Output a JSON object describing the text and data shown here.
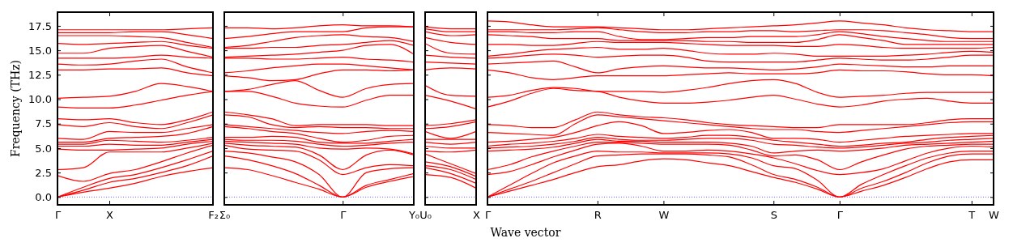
{
  "chart_data": [
    {
      "type": "line",
      "ylabel": "Frequency (THz)",
      "categories": [
        "Γ",
        null,
        "X",
        null,
        null,
        null,
        "F₂"
      ],
      "ylim": [
        -0.8,
        18.9
      ],
      "yticks": [
        {
          "value": 0,
          "label": "0.0"
        },
        {
          "value": 2.5,
          "label": "2.5"
        },
        {
          "value": 5,
          "label": "5.0"
        },
        {
          "value": 7.5,
          "label": "7.5"
        },
        {
          "value": 10,
          "label": "10.0"
        },
        {
          "value": 12.5,
          "label": "12.5"
        },
        {
          "value": 15,
          "label": "15.0"
        },
        {
          "value": 17.5,
          "label": "17.5"
        }
      ],
      "ref_lines": [
        {
          "axis": "y",
          "value": 0,
          "color": "#0000ff",
          "line_style": "dotted"
        }
      ],
      "series": [
        {
          "color": "#ff0000",
          "values": [
            0,
            0.5,
            0.9,
            1.4,
            2.1,
            2.6,
            3.0
          ]
        },
        {
          "color": "#ff0000",
          "values": [
            0,
            0.7,
            1.5,
            1.9,
            2.5,
            3.2,
            4.2
          ]
        },
        {
          "color": "#ff0000",
          "values": [
            0,
            1.0,
            1.9,
            2.3,
            3.0,
            3.8,
            4.7
          ]
        },
        {
          "color": "#ff0000",
          "values": [
            2.2,
            1.6,
            2.4,
            2.8,
            3.6,
            4.5,
            5.3
          ]
        },
        {
          "color": "#ff0000",
          "values": [
            2.8,
            3.0,
            4.6,
            4.6,
            4.6,
            5.0,
            5.5
          ]
        },
        {
          "color": "#ff0000",
          "values": [
            4.9,
            4.8,
            4.8,
            4.9,
            5.0,
            5.4,
            5.7
          ]
        },
        {
          "color": "#ff0000",
          "values": [
            5.2,
            5.2,
            5.4,
            5.3,
            5.3,
            5.6,
            5.9
          ]
        },
        {
          "color": "#ff0000",
          "values": [
            5.4,
            5.4,
            5.8,
            5.7,
            5.6,
            5.8,
            6.1
          ]
        },
        {
          "color": "#ff0000",
          "values": [
            5.6,
            5.6,
            6.0,
            6.1,
            6.2,
            6.5,
            7.2
          ]
        },
        {
          "color": "#ff0000",
          "values": [
            6.0,
            5.9,
            6.7,
            6.6,
            6.6,
            7.0,
            7.4
          ]
        },
        {
          "color": "#ff0000",
          "values": [
            7.4,
            7.2,
            7.6,
            7.2,
            7.0,
            7.6,
            8.4
          ]
        },
        {
          "color": "#ff0000",
          "values": [
            8.0,
            7.9,
            8.0,
            7.6,
            7.4,
            7.9,
            8.7
          ]
        },
        {
          "color": "#ff0000",
          "values": [
            9.2,
            9.1,
            9.1,
            9.4,
            9.9,
            10.4,
            10.8
          ]
        },
        {
          "color": "#ff0000",
          "values": [
            10.1,
            10.2,
            10.3,
            10.8,
            11.6,
            11.3,
            10.8
          ]
        },
        {
          "color": "#ff0000",
          "values": [
            13.0,
            13.0,
            13.1,
            13.1,
            13.2,
            12.7,
            12.4
          ]
        },
        {
          "color": "#ff0000",
          "values": [
            13.6,
            13.5,
            13.6,
            13.9,
            14.1,
            13.3,
            12.7
          ]
        },
        {
          "color": "#ff0000",
          "values": [
            14.2,
            14.2,
            14.2,
            14.3,
            14.5,
            14.3,
            14.2
          ]
        },
        {
          "color": "#ff0000",
          "values": [
            14.7,
            14.7,
            15.2,
            15.4,
            15.5,
            14.9,
            14.3
          ]
        },
        {
          "color": "#ff0000",
          "values": [
            15.7,
            15.6,
            15.7,
            15.8,
            15.9,
            15.5,
            15.2
          ]
        },
        {
          "color": "#ff0000",
          "values": [
            16.5,
            16.5,
            16.5,
            16.4,
            16.3,
            15.8,
            15.3
          ]
        },
        {
          "color": "#ff0000",
          "values": [
            16.8,
            16.8,
            16.8,
            16.9,
            16.9,
            16.6,
            16.2
          ]
        },
        {
          "color": "#ff0000",
          "values": [
            17.1,
            17.1,
            17.1,
            17.1,
            17.1,
            17.2,
            17.3
          ]
        }
      ]
    },
    {
      "type": "line",
      "tick_labels": "x",
      "categories": [
        "Σ₀",
        null,
        null,
        null,
        null,
        "Γ",
        null,
        null,
        "Y₀"
      ],
      "ylim": [
        -0.8,
        18.9
      ],
      "yticks": [
        {
          "value": 0,
          "label": null
        },
        {
          "value": 2.5,
          "label": null
        },
        {
          "value": 5,
          "label": null
        },
        {
          "value": 7.5,
          "label": null
        },
        {
          "value": 10,
          "label": null
        },
        {
          "value": 12.5,
          "label": null
        },
        {
          "value": 15,
          "label": null
        },
        {
          "value": 17.5,
          "label": null
        }
      ],
      "ref_lines": [
        {
          "axis": "y",
          "value": 0,
          "color": "#0000ff",
          "line_style": "dotted"
        }
      ],
      "series": [
        {
          "color": "#ff0000",
          "values": [
            3.0,
            2.8,
            2.2,
            1.5,
            0.8,
            0,
            1.0,
            1.6,
            2.1
          ]
        },
        {
          "color": "#ff0000",
          "values": [
            4.2,
            3.8,
            3.2,
            2.4,
            1.2,
            0,
            1.2,
            1.8,
            2.4
          ]
        },
        {
          "color": "#ff0000",
          "values": [
            4.7,
            4.5,
            4.1,
            3.6,
            2.3,
            0,
            2.5,
            2.9,
            3.0
          ]
        },
        {
          "color": "#ff0000",
          "values": [
            5.3,
            4.9,
            4.8,
            4.7,
            3.8,
            2.3,
            3.0,
            3.3,
            3.2
          ]
        },
        {
          "color": "#ff0000",
          "values": [
            5.5,
            5.3,
            5.2,
            5.1,
            4.3,
            2.8,
            4.3,
            4.8,
            4.3
          ]
        },
        {
          "color": "#ff0000",
          "values": [
            5.7,
            5.6,
            5.5,
            5.4,
            5.0,
            4.9,
            5.0,
            4.9,
            4.4
          ]
        },
        {
          "color": "#ff0000",
          "values": [
            5.9,
            5.8,
            5.8,
            5.7,
            5.4,
            5.2,
            5.3,
            5.5,
            5.6
          ]
        },
        {
          "color": "#ff0000",
          "values": [
            6.1,
            6.1,
            6.2,
            6.1,
            5.6,
            5.5,
            5.5,
            5.7,
            5.9
          ]
        },
        {
          "color": "#ff0000",
          "values": [
            7.2,
            7.0,
            6.7,
            6.5,
            6.0,
            5.6,
            5.8,
            6.2,
            6.3
          ]
        },
        {
          "color": "#ff0000",
          "values": [
            7.4,
            7.2,
            7.0,
            6.8,
            6.6,
            6.5,
            6.7,
            6.8,
            6.7
          ]
        },
        {
          "color": "#ff0000",
          "values": [
            8.4,
            8.2,
            7.4,
            7.1,
            7.2,
            7.1,
            7.1,
            7.0,
            7.0
          ]
        },
        {
          "color": "#ff0000",
          "values": [
            8.7,
            8.4,
            8.0,
            7.3,
            7.4,
            7.4,
            7.4,
            7.3,
            7.3
          ]
        },
        {
          "color": "#ff0000",
          "values": [
            10.8,
            10.8,
            10.3,
            9.6,
            9.3,
            9.2,
            9.9,
            10.4,
            10.4
          ]
        },
        {
          "color": "#ff0000",
          "values": [
            10.8,
            11.0,
            11.5,
            11.9,
            10.9,
            10.2,
            11.1,
            11.5,
            11.6
          ]
        },
        {
          "color": "#ff0000",
          "values": [
            12.4,
            12.2,
            11.9,
            12.0,
            12.6,
            13.0,
            13.0,
            12.9,
            13.0
          ]
        },
        {
          "color": "#ff0000",
          "values": [
            12.7,
            12.9,
            13.2,
            13.4,
            13.6,
            13.6,
            13.4,
            13.2,
            13.0
          ]
        },
        {
          "color": "#ff0000",
          "values": [
            14.2,
            14.2,
            14.1,
            14.1,
            14.2,
            14.3,
            14.1,
            14.0,
            13.8
          ]
        },
        {
          "color": "#ff0000",
          "values": [
            14.3,
            14.4,
            14.5,
            14.6,
            14.8,
            15.0,
            15.5,
            15.6,
            14.6
          ]
        },
        {
          "color": "#ff0000",
          "values": [
            15.2,
            15.2,
            15.3,
            15.3,
            15.5,
            15.6,
            15.8,
            16.0,
            15.5
          ]
        },
        {
          "color": "#ff0000",
          "values": [
            15.3,
            15.5,
            15.9,
            16.3,
            16.5,
            16.6,
            16.4,
            16.3,
            15.9
          ]
        },
        {
          "color": "#ff0000",
          "values": [
            16.2,
            16.4,
            16.7,
            16.9,
            16.9,
            16.9,
            17.3,
            17.4,
            17.4
          ]
        },
        {
          "color": "#ff0000",
          "values": [
            17.3,
            17.3,
            17.2,
            17.3,
            17.5,
            17.6,
            17.5,
            17.5,
            17.4
          ]
        }
      ]
    },
    {
      "type": "line",
      "tick_labels": "x",
      "categories": [
        "U₀",
        null,
        "X"
      ],
      "ylim": [
        -0.8,
        18.9
      ],
      "yticks": [
        {
          "value": 0,
          "label": null
        },
        {
          "value": 2.5,
          "label": null
        },
        {
          "value": 5,
          "label": null
        },
        {
          "value": 7.5,
          "label": null
        },
        {
          "value": 10,
          "label": null
        },
        {
          "value": 12.5,
          "label": null
        },
        {
          "value": 15,
          "label": null
        },
        {
          "value": 17.5,
          "label": null
        }
      ],
      "ref_lines": [
        {
          "axis": "y",
          "value": 0,
          "color": "#0000ff",
          "line_style": "dotted"
        }
      ],
      "series": [
        {
          "color": "#ff0000",
          "values": [
            2.3,
            2.0,
            0.9
          ]
        },
        {
          "color": "#ff0000",
          "values": [
            3.0,
            2.4,
            1.4
          ]
        },
        {
          "color": "#ff0000",
          "values": [
            3.2,
            2.8,
            1.8
          ]
        },
        {
          "color": "#ff0000",
          "values": [
            3.6,
            3.1,
            2.1
          ]
        },
        {
          "color": "#ff0000",
          "values": [
            4.4,
            3.4,
            2.4
          ]
        },
        {
          "color": "#ff0000",
          "values": [
            4.7,
            4.6,
            4.8
          ]
        },
        {
          "color": "#ff0000",
          "values": [
            5.2,
            5.0,
            5.0
          ]
        },
        {
          "color": "#ff0000",
          "values": [
            5.6,
            5.4,
            5.6
          ]
        },
        {
          "color": "#ff0000",
          "values": [
            5.9,
            5.9,
            5.9
          ]
        },
        {
          "color": "#ff0000",
          "values": [
            6.7,
            6.0,
            6.7
          ]
        },
        {
          "color": "#ff0000",
          "values": [
            7.0,
            7.2,
            7.7
          ]
        },
        {
          "color": "#ff0000",
          "values": [
            7.3,
            7.5,
            7.9
          ]
        },
        {
          "color": "#ff0000",
          "values": [
            10.4,
            9.8,
            9.0
          ]
        },
        {
          "color": "#ff0000",
          "values": [
            11.4,
            10.4,
            10.3
          ]
        },
        {
          "color": "#ff0000",
          "values": [
            13.0,
            13.2,
            13.1
          ]
        },
        {
          "color": "#ff0000",
          "values": [
            13.8,
            13.7,
            13.6
          ]
        },
        {
          "color": "#ff0000",
          "values": [
            14.5,
            14.3,
            14.2
          ]
        },
        {
          "color": "#ff0000",
          "values": [
            15.7,
            14.7,
            14.6
          ]
        },
        {
          "color": "#ff0000",
          "values": [
            16.3,
            15.8,
            15.6
          ]
        },
        {
          "color": "#ff0000",
          "values": [
            16.9,
            16.5,
            16.6
          ]
        },
        {
          "color": "#ff0000",
          "values": [
            17.2,
            16.9,
            16.9
          ]
        },
        {
          "color": "#ff0000",
          "values": [
            17.4,
            17.2,
            17.2
          ]
        }
      ]
    },
    {
      "type": "line",
      "tick_labels": "x",
      "xlabel": "Wave vector",
      "categories": [
        "Γ",
        null,
        null,
        null,
        null,
        "R",
        null,
        null,
        "W",
        null,
        null,
        null,
        null,
        "S",
        null,
        null,
        "Γ",
        null,
        null,
        null,
        null,
        null,
        "T",
        "W"
      ],
      "ylim": [
        -0.8,
        18.9
      ],
      "yticks": [
        {
          "value": 0,
          "label": null
        },
        {
          "value": 2.5,
          "label": null
        },
        {
          "value": 5,
          "label": null
        },
        {
          "value": 7.5,
          "label": null
        },
        {
          "value": 10,
          "label": null
        },
        {
          "value": 12.5,
          "label": null
        },
        {
          "value": 15,
          "label": null
        },
        {
          "value": 17.5,
          "label": null
        }
      ],
      "ref_lines": [
        {
          "axis": "y",
          "value": 0,
          "color": "#0000ff",
          "line_style": "dotted"
        }
      ],
      "series": [
        {
          "color": "#ff0000",
          "values": [
            0,
            0.6,
            1.2,
            1.8,
            2.5,
            3.1,
            3.3,
            3.7,
            3.9,
            3.8,
            3.5,
            3.2,
            2.6,
            2.0,
            1.5,
            0.8,
            0,
            0.6,
            1.2,
            2.0,
            2.9,
            3.6,
            3.8,
            3.8
          ]
        },
        {
          "color": "#ff0000",
          "values": [
            0,
            0.8,
            1.6,
            2.5,
            3.4,
            4.2,
            4.3,
            4.4,
            4.4,
            4.4,
            4.3,
            4.1,
            3.3,
            2.3,
            1.8,
            1.0,
            0,
            0.9,
            1.6,
            2.5,
            3.5,
            4.2,
            4.4,
            4.4
          ]
        },
        {
          "color": "#ff0000",
          "values": [
            0,
            1.2,
            2.4,
            3.5,
            4.2,
            4.7,
            4.6,
            4.6,
            4.5,
            4.5,
            4.5,
            4.4,
            4.0,
            3.2,
            2.9,
            1.7,
            0,
            1.3,
            2.3,
            3.2,
            4.0,
            4.5,
            4.7,
            4.7
          ]
        },
        {
          "color": "#ff0000",
          "values": [
            2.3,
            2.6,
            3.3,
            4.1,
            4.8,
            5.4,
            5.5,
            5.2,
            4.7,
            4.7,
            4.8,
            4.7,
            4.4,
            4.0,
            3.4,
            2.7,
            2.3,
            2.5,
            2.9,
            3.7,
            4.5,
            5.0,
            5.2,
            5.1
          ]
        },
        {
          "color": "#ff0000",
          "values": [
            2.8,
            3.3,
            4.1,
            4.7,
            5.2,
            5.6,
            5.6,
            5.5,
            5.4,
            5.4,
            5.4,
            5.3,
            4.8,
            4.2,
            4.3,
            3.8,
            2.8,
            3.6,
            4.3,
            4.9,
            5.2,
            5.3,
            5.4,
            5.4
          ]
        },
        {
          "color": "#ff0000",
          "values": [
            4.7,
            4.8,
            4.9,
            5.1,
            5.5,
            5.9,
            5.7,
            5.7,
            5.6,
            5.6,
            5.6,
            5.5,
            5.2,
            4.5,
            4.7,
            4.8,
            4.7,
            4.8,
            5.0,
            5.3,
            5.4,
            5.5,
            5.6,
            5.7
          ]
        },
        {
          "color": "#ff0000",
          "values": [
            5.0,
            5.1,
            5.2,
            5.4,
            5.7,
            6.1,
            5.9,
            5.8,
            5.8,
            5.9,
            6.0,
            6.0,
            5.8,
            5.4,
            5.3,
            5.1,
            5.0,
            5.1,
            5.3,
            5.5,
            5.6,
            5.8,
            5.9,
            6.0
          ]
        },
        {
          "color": "#ff0000",
          "values": [
            5.2,
            5.4,
            5.5,
            5.7,
            6.0,
            6.4,
            6.2,
            6.1,
            6.0,
            6.1,
            6.3,
            6.3,
            6.1,
            5.8,
            5.6,
            5.4,
            5.2,
            5.3,
            5.5,
            5.6,
            5.9,
            6.1,
            6.2,
            6.3
          ]
        },
        {
          "color": "#ff0000",
          "values": [
            5.6,
            5.7,
            5.9,
            6.1,
            6.6,
            7.3,
            7.7,
            7.3,
            6.5,
            6.6,
            6.8,
            6.9,
            6.6,
            6.0,
            6.0,
            5.9,
            5.6,
            5.8,
            6.0,
            6.2,
            6.3,
            6.4,
            6.5,
            6.5
          ]
        },
        {
          "color": "#ff0000",
          "values": [
            6.6,
            6.5,
            6.4,
            6.3,
            7.5,
            8.4,
            8.2,
            8.0,
            7.8,
            7.6,
            7.4,
            7.2,
            7.0,
            6.9,
            6.9,
            6.7,
            6.6,
            6.8,
            7.0,
            7.2,
            7.4,
            7.6,
            7.7,
            7.7
          ]
        },
        {
          "color": "#ff0000",
          "values": [
            7.4,
            7.3,
            7.1,
            7.1,
            7.9,
            8.7,
            8.4,
            8.2,
            8.1,
            7.9,
            7.6,
            7.4,
            7.3,
            7.2,
            7.1,
            7.1,
            7.4,
            7.4,
            7.4,
            7.4,
            7.6,
            7.9,
            8.0,
            8.0
          ]
        },
        {
          "color": "#ff0000",
          "values": [
            9.2,
            9.8,
            10.6,
            11.1,
            10.9,
            10.8,
            10.2,
            9.8,
            9.6,
            9.6,
            9.7,
            9.9,
            10.2,
            10.4,
            10.0,
            9.5,
            9.2,
            9.4,
            9.8,
            10.0,
            10.1,
            9.8,
            9.6,
            9.6
          ]
        },
        {
          "color": "#ff0000",
          "values": [
            10.2,
            10.4,
            10.9,
            11.2,
            11.1,
            10.8,
            10.8,
            10.8,
            10.7,
            10.9,
            11.2,
            11.6,
            11.9,
            12.0,
            11.6,
            10.7,
            10.2,
            10.3,
            10.4,
            10.6,
            10.7,
            10.7,
            10.7,
            10.7
          ]
        },
        {
          "color": "#ff0000",
          "values": [
            13.0,
            12.7,
            12.2,
            12.0,
            12.2,
            12.4,
            12.4,
            12.4,
            12.4,
            12.5,
            12.6,
            12.7,
            12.6,
            12.6,
            12.6,
            12.7,
            13.0,
            12.9,
            12.9,
            12.8,
            12.6,
            12.5,
            12.5,
            12.4
          ]
        },
        {
          "color": "#ff0000",
          "values": [
            13.6,
            13.7,
            13.8,
            13.9,
            13.3,
            12.7,
            13.1,
            13.3,
            13.4,
            13.3,
            13.2,
            13.2,
            13.1,
            13.0,
            13.1,
            13.3,
            13.6,
            13.5,
            13.4,
            13.3,
            13.3,
            13.4,
            13.4,
            13.4
          ]
        },
        {
          "color": "#ff0000",
          "values": [
            14.2,
            14.3,
            14.5,
            14.6,
            14.5,
            14.3,
            14.4,
            14.5,
            14.5,
            14.3,
            13.9,
            13.8,
            13.8,
            13.8,
            13.8,
            14.0,
            14.2,
            14.1,
            14.0,
            14.0,
            14.1,
            14.3,
            14.5,
            14.5
          ]
        },
        {
          "color": "#ff0000",
          "values": [
            14.4,
            14.6,
            14.9,
            15.1,
            15.2,
            15.3,
            15.1,
            15.1,
            15.2,
            15.0,
            14.7,
            14.6,
            14.6,
            14.7,
            14.6,
            14.4,
            14.4,
            14.4,
            14.4,
            14.5,
            14.6,
            14.8,
            14.9,
            14.8
          ]
        },
        {
          "color": "#ff0000",
          "values": [
            15.6,
            15.6,
            15.5,
            15.5,
            15.7,
            15.9,
            15.8,
            15.8,
            15.8,
            15.7,
            15.6,
            15.5,
            15.5,
            15.5,
            15.4,
            15.4,
            15.6,
            15.5,
            15.3,
            15.2,
            15.2,
            15.2,
            15.2,
            15.3
          ]
        },
        {
          "color": "#ff0000",
          "values": [
            16.6,
            16.5,
            16.4,
            16.2,
            16.2,
            16.2,
            16.0,
            16.0,
            16.0,
            16.0,
            15.9,
            15.9,
            15.8,
            15.8,
            15.8,
            16.1,
            16.6,
            16.3,
            16.0,
            15.6,
            15.6,
            15.6,
            15.6,
            15.6
          ]
        },
        {
          "color": "#ff0000",
          "values": [
            16.9,
            16.9,
            16.8,
            16.8,
            16.9,
            16.9,
            16.4,
            16.1,
            16.1,
            16.2,
            16.3,
            16.3,
            16.4,
            16.4,
            16.4,
            16.6,
            16.9,
            16.7,
            16.4,
            16.2,
            16.0,
            15.9,
            15.9,
            15.9
          ]
        },
        {
          "color": "#ff0000",
          "values": [
            17.1,
            17.1,
            17.1,
            17.1,
            17.2,
            17.3,
            17.1,
            16.9,
            16.8,
            16.8,
            16.9,
            16.9,
            17.0,
            17.0,
            16.9,
            17.0,
            17.1,
            17.1,
            17.0,
            16.8,
            16.6,
            16.3,
            16.2,
            16.2
          ]
        },
        {
          "color": "#ff0000",
          "values": [
            18.0,
            17.9,
            17.6,
            17.4,
            17.4,
            17.4,
            17.3,
            17.2,
            17.1,
            17.1,
            17.2,
            17.3,
            17.4,
            17.5,
            17.6,
            17.8,
            18.0,
            17.8,
            17.6,
            17.3,
            17.1,
            17.0,
            16.9,
            16.9
          ]
        }
      ]
    }
  ]
}
